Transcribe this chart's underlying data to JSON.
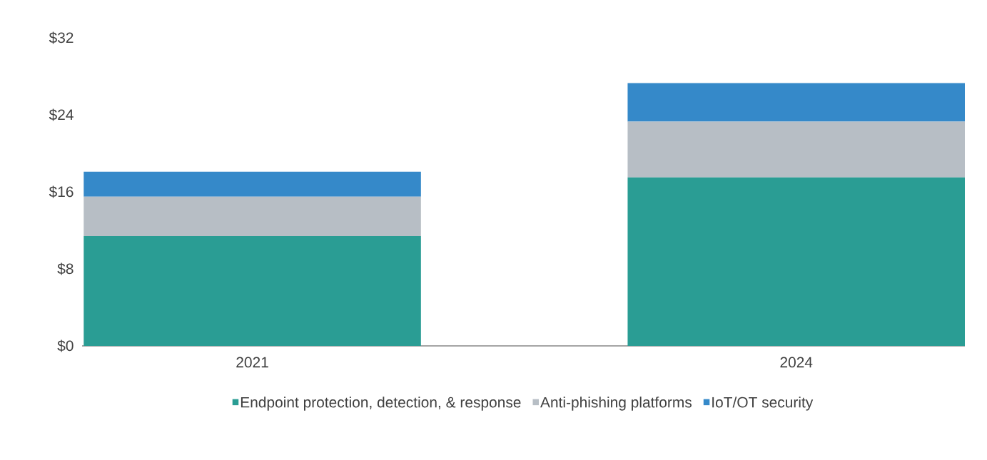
{
  "chart_data": {
    "type": "bar",
    "stacked": true,
    "categories": [
      "2021",
      "2024"
    ],
    "series": [
      {
        "name": "Endpoint protection, detection, & response",
        "color": "#2a9d94",
        "values": [
          11.4,
          17.5
        ]
      },
      {
        "name": "Anti-phishing platforms",
        "color": "#b7bec5",
        "values": [
          4.1,
          5.8
        ]
      },
      {
        "name": "IoT/OT security",
        "color": "#3589c9",
        "values": [
          2.6,
          4.0
        ]
      }
    ],
    "ylim": [
      0,
      32
    ],
    "yticks": [
      {
        "value": 0,
        "label": "$0"
      },
      {
        "value": 8,
        "label": "$8"
      },
      {
        "value": 16,
        "label": "$16"
      },
      {
        "value": 24,
        "label": "$24"
      },
      {
        "value": 32,
        "label": "$32"
      }
    ],
    "grid": false,
    "legend": "bottom"
  }
}
